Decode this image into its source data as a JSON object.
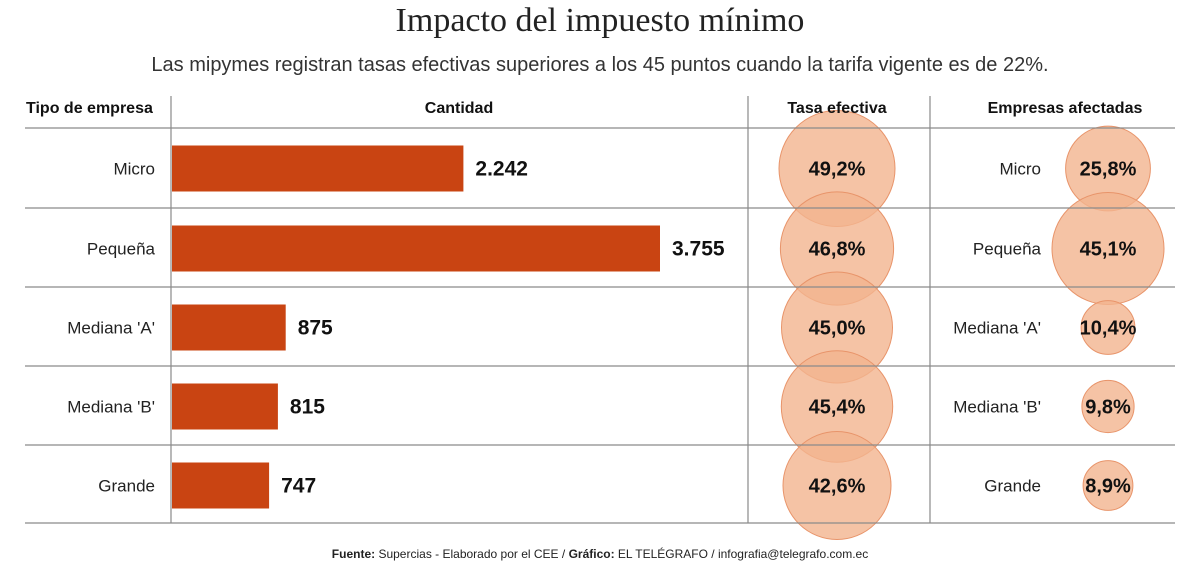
{
  "title": "Impacto del impuesto mínimo",
  "subtitle": "Las mipymes registran tasas efectivas superiores a los 45 puntos cuando la tarifa vigente es de 22%.",
  "source": {
    "source_label": "Fuente:",
    "source_text": " Supercias - Elaborado por el CEE / ",
    "graphic_label": "Gráfico:",
    "graphic_text": " EL TELÉGRAFO / infografia@telegrafo.com.ec"
  },
  "colors": {
    "bar": "#c94412",
    "bubble_fill": "#f2b48e",
    "bubble_stroke": "#e8946a",
    "rule": "#8a8a8a"
  },
  "chart_data": {
    "type": "table",
    "headers": {
      "type": "Tipo de empresa",
      "amount": "Cantidad",
      "rate": "Tasa efectiva",
      "affected": "Empresas afectadas"
    },
    "rows": [
      {
        "category": "Micro",
        "amount": 2242,
        "amount_label": "2.242",
        "rate": 49.2,
        "rate_label": "49,2%",
        "affected_category": "Micro",
        "affected": 25.8,
        "affected_label": "25,8%"
      },
      {
        "category": "Pequeña",
        "amount": 3755,
        "amount_label": "3.755",
        "rate": 46.8,
        "rate_label": "46,8%",
        "affected_category": "Pequeña",
        "affected": 45.1,
        "affected_label": "45,1%"
      },
      {
        "category": "Mediana 'A'",
        "amount": 875,
        "amount_label": "875",
        "rate": 45.0,
        "rate_label": "45,0%",
        "affected_category": "Mediana 'A'",
        "affected": 10.4,
        "affected_label": "10,4%"
      },
      {
        "category": "Mediana 'B'",
        "amount": 815,
        "amount_label": "815",
        "rate": 45.4,
        "rate_label": "45,4%",
        "affected_category": "Mediana 'B'",
        "affected": 9.8,
        "affected_label": "9,8%"
      },
      {
        "category": "Grande",
        "amount": 747,
        "amount_label": "747",
        "rate": 42.6,
        "rate_label": "42,6%",
        "affected_category": "Grande",
        "affected": 8.9,
        "affected_label": "8,9%"
      }
    ]
  }
}
